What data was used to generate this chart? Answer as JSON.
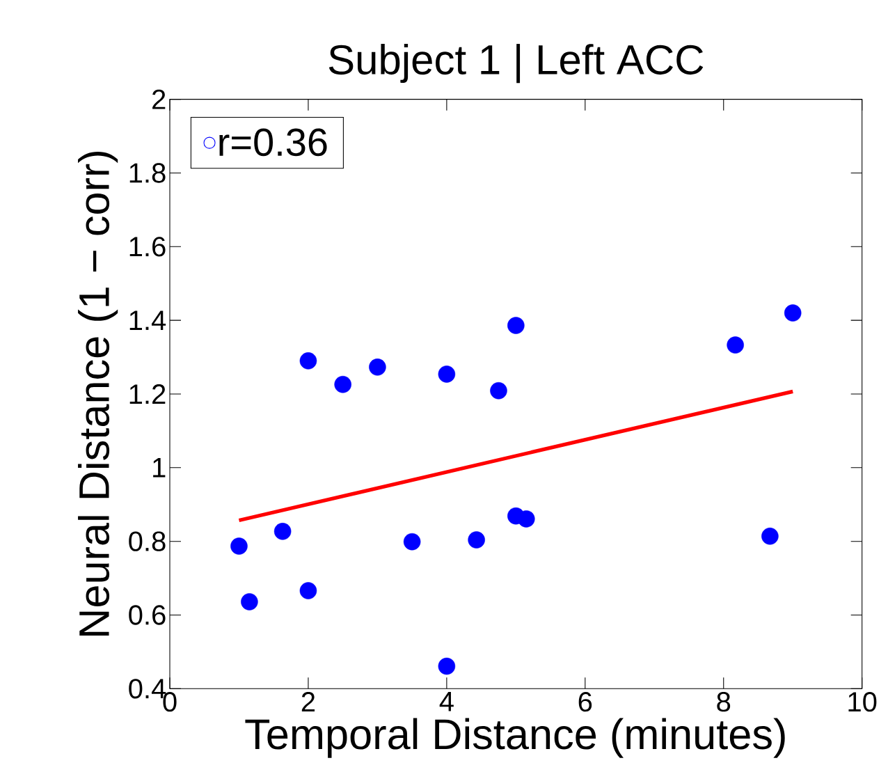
{
  "chart_data": {
    "type": "scatter",
    "title": "Subject 1 | Left ACC",
    "xlabel": "Temporal Distance (minutes)",
    "ylabel": "Neural Distance (1 − corr)",
    "xlim": [
      0,
      10
    ],
    "ylim": [
      0.4,
      2
    ],
    "xticks": [
      0,
      2,
      4,
      6,
      8,
      10
    ],
    "yticks": [
      0.4,
      0.6,
      0.8,
      1,
      1.2,
      1.4,
      1.6,
      1.8,
      2
    ],
    "legend": "top left",
    "series": [
      {
        "name": "r=0.36",
        "marker": "circle",
        "color": "#0000ff",
        "x": [
          1,
          1.15,
          1.63,
          2,
          2,
          2.5,
          3,
          3.5,
          4,
          4,
          4.43,
          4.75,
          5,
          5,
          5.15,
          8.17,
          8.67,
          9
        ],
        "values": [
          0.787,
          0.636,
          0.827,
          0.666,
          1.29,
          1.226,
          1.273,
          0.799,
          1.254,
          0.461,
          0.804,
          1.209,
          1.386,
          0.869,
          0.861,
          1.333,
          0.814,
          1.42
        ]
      },
      {
        "type": "line",
        "color": "#ff0000",
        "x": [
          1,
          9
        ],
        "values": [
          0.857,
          1.207
        ]
      }
    ]
  }
}
